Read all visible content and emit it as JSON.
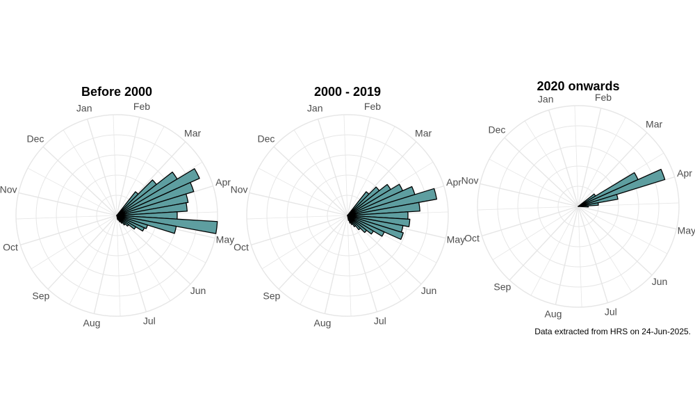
{
  "caption": "Data extracted from HRS on 24-Jun-2025.",
  "colors": {
    "bar_fill": "#5e9ea0",
    "bar_stroke": "#000000",
    "grid": "#e6e6e6",
    "label": "#4d4d4d"
  },
  "chart_data": [
    {
      "type": "bar",
      "coord": "polar",
      "title": "Before 2000",
      "month_labels": [
        "Jan",
        "Feb",
        "Mar",
        "Apr",
        "May",
        "Jun",
        "Jul",
        "Aug",
        "Sep",
        "Oct",
        "Nov",
        "Dec"
      ],
      "grid": true,
      "bin_days": 7,
      "weeks": [
        9,
        10,
        11,
        12,
        13,
        14,
        15,
        16,
        17,
        18,
        19,
        20,
        21,
        22,
        23,
        24,
        25,
        26,
        27
      ],
      "values": [
        0.3,
        0.5,
        0.7,
        0.9,
        0.8,
        0.72,
        0.7,
        0.6,
        1.0,
        0.6,
        0.32,
        0.3,
        0.22,
        0.15,
        0.12,
        0.09,
        0.07,
        0.05,
        0.04
      ]
    },
    {
      "type": "bar",
      "coord": "polar",
      "title": "2000 - 2019",
      "month_labels": [
        "Jan",
        "Feb",
        "Mar",
        "Apr",
        "May",
        "Jun",
        "Jul",
        "Aug",
        "Sep",
        "Oct",
        "Nov",
        "Dec"
      ],
      "grid": true,
      "bin_days": 7,
      "weeks": [
        9,
        10,
        11,
        12,
        13,
        14,
        15,
        16,
        17,
        18,
        19,
        20,
        21,
        22,
        23,
        24,
        25,
        26,
        27
      ],
      "values": [
        0.3,
        0.4,
        0.5,
        0.6,
        0.7,
        0.9,
        0.72,
        0.6,
        0.62,
        0.56,
        0.58,
        0.4,
        0.3,
        0.24,
        0.18,
        0.13,
        0.1,
        0.08,
        0.05
      ]
    },
    {
      "type": "bar",
      "coord": "polar",
      "title": "2020 onwards",
      "month_labels": [
        "Jan",
        "Feb",
        "Mar",
        "Apr",
        "May",
        "Jun",
        "Jul",
        "Aug",
        "Sep",
        "Oct",
        "Nov",
        "Dec"
      ],
      "grid": true,
      "bin_days": 7,
      "weeks": [
        11,
        12,
        13,
        14,
        15,
        16
      ],
      "values": [
        0.2,
        0.65,
        0.9,
        0.4,
        0.2,
        0.1
      ]
    }
  ]
}
